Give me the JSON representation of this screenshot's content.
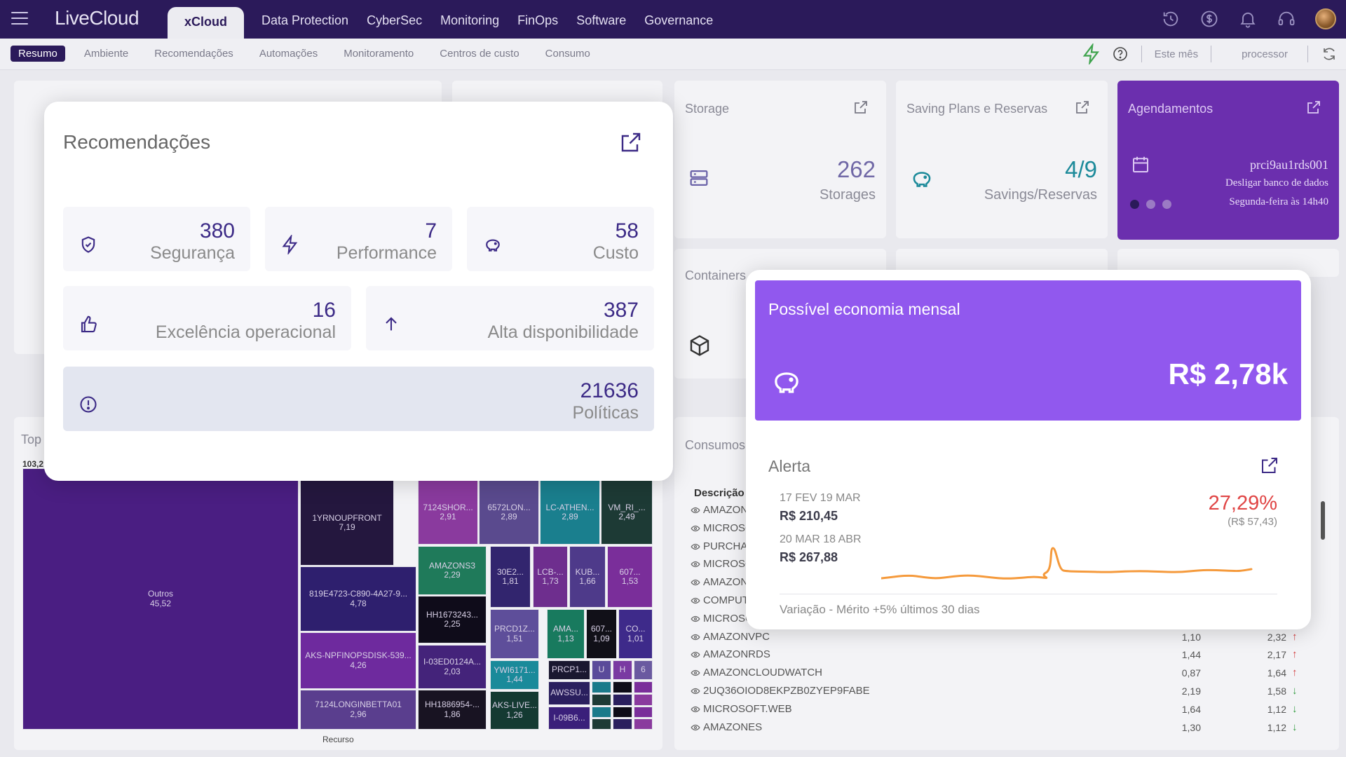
{
  "app": {
    "logo": "LiveCloud"
  },
  "top_nav": {
    "tabs": [
      "xCloud",
      "Data Protection",
      "CyberSec",
      "Monitoring",
      "FinOps",
      "Software",
      "Governance"
    ],
    "icons": [
      "history-icon",
      "dollar-icon",
      "bell-icon",
      "headset-icon",
      "user-avatar"
    ]
  },
  "sub_nav": {
    "tabs": [
      "Resumo",
      "Ambiente",
      "Recomendações",
      "Automações",
      "Monitoramento",
      "Centros de custo",
      "Consumo"
    ],
    "period": "Este mês",
    "filter": "processor"
  },
  "dashboard": {
    "storage": {
      "title": "Storage",
      "value": "262",
      "label": "Storages"
    },
    "savings": {
      "title": "Saving Plans e Reservas",
      "value": "4/9",
      "label": "Savings/Reservas"
    },
    "agendamentos": {
      "title": "Agendamentos",
      "name": "prci9au1rds001",
      "action": "Desligar banco de dados",
      "when": "Segunda-feira às 14h40"
    },
    "containers": {
      "title": "Containers"
    },
    "top": {
      "title": "Top",
      "max": "103,2",
      "xlabel": "Recurso"
    },
    "consumos": {
      "title": "Consumos",
      "header": "Descrição",
      "rows": [
        {
          "d": "AMAZON",
          "v1": "",
          "v2": "",
          "dir": "down"
        },
        {
          "d": "MICROSC",
          "v1": "",
          "v2": "",
          "dir": "down"
        },
        {
          "d": "PURCHAS",
          "v1": "",
          "v2": "",
          "dir": ""
        },
        {
          "d": "MICROSC",
          "v1": "",
          "v2": "",
          "dir": "down"
        },
        {
          "d": "AMAZON",
          "v1": "",
          "v2": "",
          "dir": "up"
        },
        {
          "d": "COMPUT",
          "v1": "",
          "v2": "",
          "dir": "up"
        },
        {
          "d": "MICROSC",
          "v1": "",
          "v2": "",
          "dir": "up"
        },
        {
          "d": "AMAZONVPC",
          "v1": "1,10",
          "v2": "2,32",
          "dir": "up"
        },
        {
          "d": "AMAZONRDS",
          "v1": "1,44",
          "v2": "2,17",
          "dir": "up"
        },
        {
          "d": "AMAZONCLOUDWATCH",
          "v1": "0,87",
          "v2": "1,64",
          "dir": "up"
        },
        {
          "d": "2UQ36OIOD8EKPZB0ZYEP9FABE",
          "v1": "2,19",
          "v2": "1,58",
          "dir": "down"
        },
        {
          "d": "MICROSOFT.WEB",
          "v1": "1,64",
          "v2": "1,12",
          "dir": "down"
        },
        {
          "d": "AMAZONES",
          "v1": "1,30",
          "v2": "1,12",
          "dir": "down"
        }
      ]
    },
    "treemap": [
      {
        "l": "Outros",
        "v": "45,52",
        "c": "#4a1e82"
      },
      {
        "l": "1YRNOUPFRONT",
        "v": "7,19",
        "c": "#24173e"
      },
      {
        "l": "7124SHOR...",
        "v": "2,91",
        "c": "#8a3a9e"
      },
      {
        "l": "6572LON...",
        "v": "2,89",
        "c": "#5a4a8e"
      },
      {
        "l": "LC-ATHEN...",
        "v": "2,89",
        "c": "#1a7f8e"
      },
      {
        "l": "VM_RI_...",
        "v": "2,49",
        "c": "#1d3a35"
      },
      {
        "l": "819E4723-C890-4A27-9...",
        "v": "4,78",
        "c": "#2e1f6e"
      },
      {
        "l": "AMAZONS3",
        "v": "2,29",
        "c": "#1f7a5a"
      },
      {
        "l": "30E2...",
        "v": "1,81",
        "c": "#32256e"
      },
      {
        "l": "LCB-...",
        "v": "1,73",
        "c": "#6e2e8e"
      },
      {
        "l": "KUB...",
        "v": "1,66",
        "c": "#4e3a8a"
      },
      {
        "l": "607...",
        "v": "1,53",
        "c": "#7a2e9a"
      },
      {
        "l": "HH1673243...",
        "v": "2,25",
        "c": "#0f0c1a"
      },
      {
        "l": "PRCD1Z...",
        "v": "1,51",
        "c": "#5e4e9a"
      },
      {
        "l": "AMA...",
        "v": "1,13",
        "c": "#187a5e"
      },
      {
        "l": "607...",
        "v": "1,09",
        "c": "#111018"
      },
      {
        "l": "CO...",
        "v": "1,01",
        "c": "#3e2a8a"
      },
      {
        "l": "AKS-NPFINOPSDISK-539...",
        "v": "4,26",
        "c": "#6e2a9e"
      },
      {
        "l": "I-03ED0124A...",
        "v": "2,03",
        "c": "#44237a"
      },
      {
        "l": "YWI6171...",
        "v": "1,44",
        "c": "#1a8a9a"
      },
      {
        "l": "PRCP1...",
        "v": "",
        "c": "#1a1830"
      },
      {
        "l": "U",
        "v": "",
        "c": "#5a4a9a"
      },
      {
        "l": "H",
        "v": "",
        "c": "#7a3aa2"
      },
      {
        "l": "6",
        "v": "",
        "c": "#6a5aa0"
      },
      {
        "l": "AWSSU...",
        "v": "",
        "c": "#2a1f5e"
      },
      {
        "l": "7124LONGINBETTA01",
        "v": "2,96",
        "c": "#5a3e8e"
      },
      {
        "l": "HH1886954-...",
        "v": "1,86",
        "c": "#181322"
      },
      {
        "l": "AKS-LIVE...",
        "v": "1,26",
        "c": "#143a32"
      },
      {
        "l": "I-09B6...",
        "v": "",
        "c": "#3a1f7a"
      }
    ]
  },
  "recomendacoes": {
    "title": "Recomendações",
    "tiles": [
      {
        "value": "380",
        "label": "Segurança",
        "icon": "shield-check-icon"
      },
      {
        "value": "7",
        "label": "Performance",
        "icon": "lightning-icon"
      },
      {
        "value": "58",
        "label": "Custo",
        "icon": "piggy-bank-icon"
      },
      {
        "value": "16",
        "label": "Excelência operacional",
        "icon": "thumbs-up-icon"
      },
      {
        "value": "387",
        "label": "Alta disponibilidade",
        "icon": "arrow-up-icon"
      },
      {
        "value": "21636",
        "label": "Políticas",
        "icon": "alert-circle-icon"
      }
    ]
  },
  "economia": {
    "title": "Possível economia mensal",
    "value": "R$ 2,78k"
  },
  "alerta": {
    "title": "Alerta",
    "period1": "17 FEV 19 MAR",
    "value1": "R$ 210,45",
    "period2": "20 MAR 18 ABR",
    "value2": "R$ 267,88",
    "pct": "27,29%",
    "delta": "(R$ 57,43)",
    "footer": "Variação - Mérito +5% últimos 30 dias",
    "spark_color": "#f59a3c"
  }
}
